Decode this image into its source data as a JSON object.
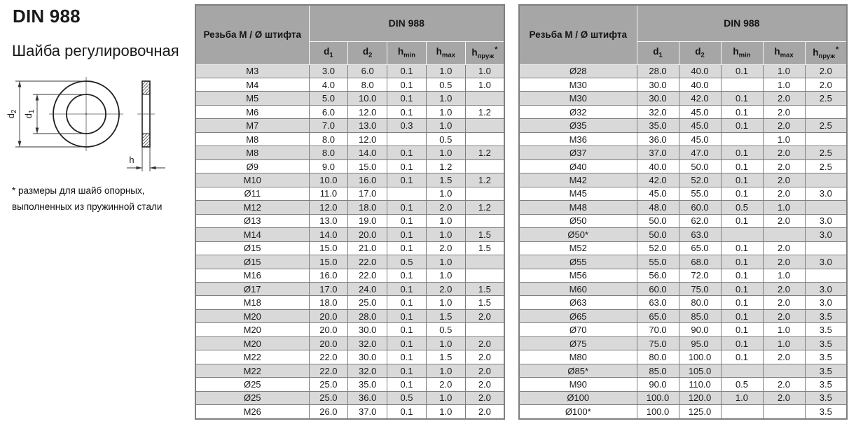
{
  "page": {
    "title": "DIN 988",
    "subtitle": "Шайба регулировочная",
    "footnote_line1": "* размеры для шайб опорных,",
    "footnote_line2": "выполненных из пружинной стали"
  },
  "drawing": {
    "d2": {
      "main": "d",
      "sub": "2"
    },
    "d1": {
      "main": "d",
      "sub": "1"
    },
    "h": "h"
  },
  "colors": {
    "header_bg": "#a6a6a6",
    "row_alt_bg": "#d9d9d9",
    "border_color": "#7f7f7f",
    "ink": "#1a1a1a"
  },
  "tables": [
    {
      "col1_header": "Резьба М / Ø штифта",
      "group_header": "DIN 988",
      "sub_headers": [
        {
          "key": "d1",
          "main": "d",
          "sub": "1"
        },
        {
          "key": "d2",
          "main": "d",
          "sub": "2"
        },
        {
          "key": "h-min",
          "main": "h",
          "sub": "min"
        },
        {
          "key": "h-max",
          "main": "h",
          "sub": "max"
        },
        {
          "key": "h-spring",
          "main": "h",
          "sub": "пруж",
          "sup": "*"
        }
      ],
      "rows": [
        [
          "M3",
          "3.0",
          "6.0",
          "0.1",
          "1.0",
          "1.0"
        ],
        [
          "M4",
          "4.0",
          "8.0",
          "0.1",
          "0.5",
          "1.0"
        ],
        [
          "M5",
          "5.0",
          "10.0",
          "0.1",
          "1.0",
          ""
        ],
        [
          "M6",
          "6.0",
          "12.0",
          "0.1",
          "1.0",
          "1.2"
        ],
        [
          "M7",
          "7.0",
          "13.0",
          "0.3",
          "1.0",
          ""
        ],
        [
          "M8",
          "8.0",
          "12.0",
          "",
          "0.5",
          ""
        ],
        [
          "M8",
          "8.0",
          "14.0",
          "0.1",
          "1.0",
          "1.2"
        ],
        [
          "Ø9",
          "9.0",
          "15.0",
          "0.1",
          "1.2",
          ""
        ],
        [
          "M10",
          "10.0",
          "16.0",
          "0.1",
          "1.5",
          "1.2"
        ],
        [
          "Ø11",
          "11.0",
          "17.0",
          "",
          "1.0",
          ""
        ],
        [
          "M12",
          "12.0",
          "18.0",
          "0.1",
          "2.0",
          "1.2"
        ],
        [
          "Ø13",
          "13.0",
          "19.0",
          "0.1",
          "1.0",
          ""
        ],
        [
          "M14",
          "14.0",
          "20.0",
          "0.1",
          "1.0",
          "1.5"
        ],
        [
          "Ø15",
          "15.0",
          "21.0",
          "0.1",
          "2.0",
          "1.5"
        ],
        [
          "Ø15",
          "15.0",
          "22.0",
          "0.5",
          "1.0",
          ""
        ],
        [
          "M16",
          "16.0",
          "22.0",
          "0.1",
          "1.0",
          ""
        ],
        [
          "Ø17",
          "17.0",
          "24.0",
          "0.1",
          "2.0",
          "1.5"
        ],
        [
          "M18",
          "18.0",
          "25.0",
          "0.1",
          "1.0",
          "1.5"
        ],
        [
          "M20",
          "20.0",
          "28.0",
          "0.1",
          "1.5",
          "2.0"
        ],
        [
          "M20",
          "20.0",
          "30.0",
          "0.1",
          "0.5",
          ""
        ],
        [
          "M20",
          "20.0",
          "32.0",
          "0.1",
          "1.0",
          "2.0"
        ],
        [
          "M22",
          "22.0",
          "30.0",
          "0.1",
          "1.5",
          "2.0"
        ],
        [
          "M22",
          "22.0",
          "32.0",
          "0.1",
          "1.0",
          "2.0"
        ],
        [
          "Ø25",
          "25.0",
          "35.0",
          "0.1",
          "2.0",
          "2.0"
        ],
        [
          "Ø25",
          "25.0",
          "36.0",
          "0.5",
          "1.0",
          "2.0"
        ],
        [
          "M26",
          "26.0",
          "37.0",
          "0.1",
          "1.0",
          "2.0"
        ]
      ]
    },
    {
      "col1_header": "Резьба М / Ø штифта",
      "group_header": "DIN 988",
      "sub_headers": [
        {
          "key": "d1",
          "main": "d",
          "sub": "1"
        },
        {
          "key": "d2",
          "main": "d",
          "sub": "2"
        },
        {
          "key": "h-min",
          "main": "h",
          "sub": "min"
        },
        {
          "key": "h-max",
          "main": "h",
          "sub": "max"
        },
        {
          "key": "h-spring",
          "main": "h",
          "sub": "пруж",
          "sup": "*"
        }
      ],
      "rows": [
        [
          "Ø28",
          "28.0",
          "40.0",
          "0.1",
          "1.0",
          "2.0"
        ],
        [
          "M30",
          "30.0",
          "40.0",
          "",
          "1.0",
          "2.0"
        ],
        [
          "M30",
          "30.0",
          "42.0",
          "0.1",
          "2.0",
          "2.5"
        ],
        [
          "Ø32",
          "32.0",
          "45.0",
          "0.1",
          "2.0",
          ""
        ],
        [
          "Ø35",
          "35.0",
          "45.0",
          "0.1",
          "2.0",
          "2.5"
        ],
        [
          "M36",
          "36.0",
          "45.0",
          "",
          "1.0",
          ""
        ],
        [
          "Ø37",
          "37.0",
          "47.0",
          "0.1",
          "2.0",
          "2.5"
        ],
        [
          "Ø40",
          "40.0",
          "50.0",
          "0.1",
          "2.0",
          "2.5"
        ],
        [
          "M42",
          "42.0",
          "52.0",
          "0.1",
          "2.0",
          ""
        ],
        [
          "M45",
          "45.0",
          "55.0",
          "0.1",
          "2.0",
          "3.0"
        ],
        [
          "M48",
          "48.0",
          "60.0",
          "0.5",
          "1.0",
          ""
        ],
        [
          "Ø50",
          "50.0",
          "62.0",
          "0.1",
          "2.0",
          "3.0"
        ],
        [
          "Ø50*",
          "50.0",
          "63.0",
          "",
          "",
          "3.0"
        ],
        [
          "M52",
          "52.0",
          "65.0",
          "0.1",
          "2.0",
          ""
        ],
        [
          "Ø55",
          "55.0",
          "68.0",
          "0.1",
          "2.0",
          "3.0"
        ],
        [
          "M56",
          "56.0",
          "72.0",
          "0.1",
          "1.0",
          ""
        ],
        [
          "M60",
          "60.0",
          "75.0",
          "0.1",
          "2.0",
          "3.0"
        ],
        [
          "Ø63",
          "63.0",
          "80.0",
          "0.1",
          "2.0",
          "3.0"
        ],
        [
          "Ø65",
          "65.0",
          "85.0",
          "0.1",
          "2.0",
          "3.5"
        ],
        [
          "Ø70",
          "70.0",
          "90.0",
          "0.1",
          "1.0",
          "3.5"
        ],
        [
          "Ø75",
          "75.0",
          "95.0",
          "0.1",
          "1.0",
          "3.5"
        ],
        [
          "M80",
          "80.0",
          "100.0",
          "0.1",
          "2.0",
          "3.5"
        ],
        [
          "Ø85*",
          "85.0",
          "105.0",
          "",
          "",
          "3.5"
        ],
        [
          "M90",
          "90.0",
          "110.0",
          "0.5",
          "2.0",
          "3.5"
        ],
        [
          "Ø100",
          "100.0",
          "120.0",
          "1.0",
          "2.0",
          "3.5"
        ],
        [
          "Ø100*",
          "100.0",
          "125.0",
          "",
          "",
          "3.5"
        ]
      ]
    }
  ]
}
